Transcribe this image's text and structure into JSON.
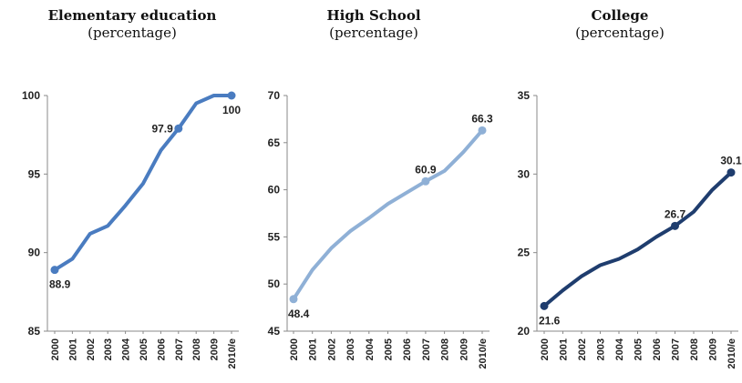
{
  "chart_data": [
    {
      "type": "line",
      "title": "Elementary education",
      "subtitle": "(percentage)",
      "categories": [
        "2000",
        "2001",
        "2002",
        "2003",
        "2004",
        "2005",
        "2006",
        "2007",
        "2008",
        "2009",
        "2010/e"
      ],
      "values": [
        88.9,
        89.6,
        91.2,
        91.7,
        93.0,
        94.4,
        96.5,
        97.9,
        99.5,
        100.0,
        100.0
      ],
      "labeled_points": [
        {
          "index": 0,
          "label": "88.9"
        },
        {
          "index": 7,
          "label": "97.9"
        },
        {
          "index": 10,
          "label": "100"
        }
      ],
      "ylim": [
        85,
        100
      ],
      "yticks": [
        "85",
        "90",
        "95",
        "100"
      ],
      "color": "#4a7cc0",
      "grid": false
    },
    {
      "type": "line",
      "title": "High School",
      "subtitle": "(percentage)",
      "categories": [
        "2000",
        "2001",
        "2002",
        "2003",
        "2004",
        "2005",
        "2006",
        "2007",
        "2008",
        "2009",
        "2010/e"
      ],
      "values": [
        48.4,
        51.5,
        53.8,
        55.6,
        57.0,
        58.5,
        59.7,
        60.9,
        62.0,
        64.0,
        66.3
      ],
      "labeled_points": [
        {
          "index": 0,
          "label": "48.4"
        },
        {
          "index": 7,
          "label": "60.9"
        },
        {
          "index": 10,
          "label": "66.3"
        }
      ],
      "ylim": [
        45,
        70
      ],
      "yticks": [
        "45",
        "50",
        "55",
        "60",
        "65",
        "70"
      ],
      "color": "#8fb0d6",
      "grid": false
    },
    {
      "type": "line",
      "title": "College",
      "subtitle": "(percentage)",
      "categories": [
        "2000",
        "2001",
        "2002",
        "2003",
        "2004",
        "2005",
        "2006",
        "2007",
        "2008",
        "2009",
        "2010/e"
      ],
      "values": [
        21.6,
        22.6,
        23.5,
        24.2,
        24.6,
        25.2,
        26.0,
        26.7,
        27.6,
        29.0,
        30.1
      ],
      "labeled_points": [
        {
          "index": 0,
          "label": "21.6"
        },
        {
          "index": 7,
          "label": "26.7"
        },
        {
          "index": 10,
          "label": "30.1"
        }
      ],
      "ylim": [
        20,
        35
      ],
      "yticks": [
        "20",
        "25",
        "30",
        "35"
      ],
      "color": "#1f3d6e",
      "grid": false
    }
  ]
}
